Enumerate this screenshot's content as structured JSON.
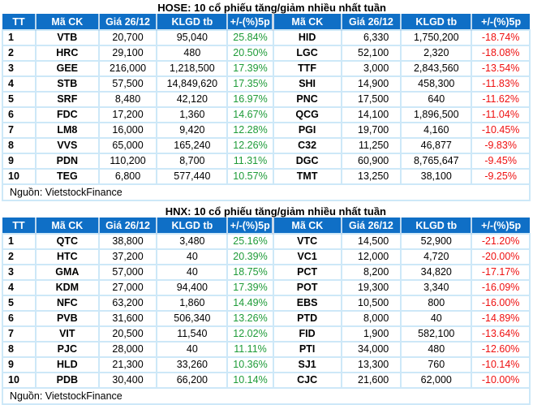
{
  "colors": {
    "header_bg": "#0f6fc6",
    "up": "#1e9b38",
    "down": "#ee1111",
    "grid": "#cde8f8"
  },
  "tables": [
    {
      "title": "HOSE: 10 cổ phiếu tăng/giảm nhiều nhất tuần",
      "headers": [
        "TT",
        "Mã CK",
        "Giá 26/12",
        "KLGD tb",
        "+/-(%)5p",
        "Mã CK",
        "Giá 26/12",
        "KLGD tb",
        "+/-(%)5p"
      ],
      "rows": [
        {
          "tt": "1",
          "gain_sym": "VTB",
          "gain_price": "20,700",
          "gain_vol": "95,040",
          "gain_pct": "25.84%",
          "loss_sym": "HID",
          "loss_price": "6,330",
          "loss_vol": "1,750,200",
          "loss_pct": "-18.74%"
        },
        {
          "tt": "2",
          "gain_sym": "HRC",
          "gain_price": "29,100",
          "gain_vol": "480",
          "gain_pct": "20.50%",
          "loss_sym": "LGC",
          "loss_price": "52,100",
          "loss_vol": "2,320",
          "loss_pct": "-18.08%"
        },
        {
          "tt": "3",
          "gain_sym": "GEE",
          "gain_price": "216,000",
          "gain_vol": "1,218,500",
          "gain_pct": "17.39%",
          "loss_sym": "TTF",
          "loss_price": "3,000",
          "loss_vol": "2,843,560",
          "loss_pct": "-13.54%"
        },
        {
          "tt": "4",
          "gain_sym": "STB",
          "gain_price": "57,500",
          "gain_vol": "14,849,620",
          "gain_pct": "17.35%",
          "loss_sym": "SHI",
          "loss_price": "14,900",
          "loss_vol": "458,300",
          "loss_pct": "-11.83%"
        },
        {
          "tt": "5",
          "gain_sym": "SRF",
          "gain_price": "8,480",
          "gain_vol": "42,120",
          "gain_pct": "16.97%",
          "loss_sym": "PNC",
          "loss_price": "17,500",
          "loss_vol": "640",
          "loss_pct": "-11.62%"
        },
        {
          "tt": "6",
          "gain_sym": "FDC",
          "gain_price": "17,200",
          "gain_vol": "1,360",
          "gain_pct": "14.67%",
          "loss_sym": "QCG",
          "loss_price": "14,100",
          "loss_vol": "1,896,500",
          "loss_pct": "-11.04%"
        },
        {
          "tt": "7",
          "gain_sym": "LM8",
          "gain_price": "16,000",
          "gain_vol": "9,420",
          "gain_pct": "12.28%",
          "loss_sym": "PGI",
          "loss_price": "19,700",
          "loss_vol": "4,160",
          "loss_pct": "-10.45%"
        },
        {
          "tt": "8",
          "gain_sym": "VVS",
          "gain_price": "65,000",
          "gain_vol": "165,240",
          "gain_pct": "12.26%",
          "loss_sym": "C32",
          "loss_price": "11,250",
          "loss_vol": "46,877",
          "loss_pct": "-9.83%"
        },
        {
          "tt": "9",
          "gain_sym": "PDN",
          "gain_price": "110,200",
          "gain_vol": "8,700",
          "gain_pct": "11.31%",
          "loss_sym": "DGC",
          "loss_price": "60,900",
          "loss_vol": "8,765,647",
          "loss_pct": "-9.45%"
        },
        {
          "tt": "10",
          "gain_sym": "TEG",
          "gain_price": "6,800",
          "gain_vol": "577,440",
          "gain_pct": "10.57%",
          "loss_sym": "TMT",
          "loss_price": "13,250",
          "loss_vol": "38,100",
          "loss_pct": "-9.25%"
        }
      ],
      "source": "Nguồn: VietstockFinance"
    },
    {
      "title": "HNX: 10 cổ phiếu tăng/giảm nhiều nhất tuần",
      "headers": [
        "TT",
        "Mã CK",
        "Giá 26/12",
        "KLGD tb",
        "+/-(%)5p",
        "Mã CK",
        "Giá 26/12",
        "KLGD tb",
        "+/-(%)5p"
      ],
      "rows": [
        {
          "tt": "1",
          "gain_sym": "QTC",
          "gain_price": "38,800",
          "gain_vol": "3,480",
          "gain_pct": "25.16%",
          "loss_sym": "VTC",
          "loss_price": "14,500",
          "loss_vol": "52,900",
          "loss_pct": "-21.20%"
        },
        {
          "tt": "2",
          "gain_sym": "HTC",
          "gain_price": "37,200",
          "gain_vol": "40",
          "gain_pct": "20.39%",
          "loss_sym": "VC1",
          "loss_price": "12,000",
          "loss_vol": "4,720",
          "loss_pct": "-20.00%"
        },
        {
          "tt": "3",
          "gain_sym": "GMA",
          "gain_price": "57,000",
          "gain_vol": "40",
          "gain_pct": "18.75%",
          "loss_sym": "PCT",
          "loss_price": "8,200",
          "loss_vol": "34,820",
          "loss_pct": "-17.17%"
        },
        {
          "tt": "4",
          "gain_sym": "KDM",
          "gain_price": "27,000",
          "gain_vol": "94,400",
          "gain_pct": "17.39%",
          "loss_sym": "POT",
          "loss_price": "19,300",
          "loss_vol": "3,340",
          "loss_pct": "-16.09%"
        },
        {
          "tt": "5",
          "gain_sym": "NFC",
          "gain_price": "63,200",
          "gain_vol": "1,860",
          "gain_pct": "14.49%",
          "loss_sym": "EBS",
          "loss_price": "10,500",
          "loss_vol": "800",
          "loss_pct": "-16.00%"
        },
        {
          "tt": "6",
          "gain_sym": "PVB",
          "gain_price": "31,600",
          "gain_vol": "506,340",
          "gain_pct": "13.26%",
          "loss_sym": "PTD",
          "loss_price": "8,000",
          "loss_vol": "40",
          "loss_pct": "-14.89%"
        },
        {
          "tt": "7",
          "gain_sym": "VIT",
          "gain_price": "20,500",
          "gain_vol": "11,540",
          "gain_pct": "12.02%",
          "loss_sym": "FID",
          "loss_price": "1,900",
          "loss_vol": "582,100",
          "loss_pct": "-13.64%"
        },
        {
          "tt": "8",
          "gain_sym": "PJC",
          "gain_price": "28,000",
          "gain_vol": "40",
          "gain_pct": "11.11%",
          "loss_sym": "PTI",
          "loss_price": "34,000",
          "loss_vol": "480",
          "loss_pct": "-12.60%"
        },
        {
          "tt": "9",
          "gain_sym": "HLD",
          "gain_price": "21,300",
          "gain_vol": "33,260",
          "gain_pct": "10.36%",
          "loss_sym": "SJ1",
          "loss_price": "13,300",
          "loss_vol": "760",
          "loss_pct": "-10.14%"
        },
        {
          "tt": "10",
          "gain_sym": "PDB",
          "gain_price": "30,400",
          "gain_vol": "66,200",
          "gain_pct": "10.14%",
          "loss_sym": "CJC",
          "loss_price": "21,600",
          "loss_vol": "62,000",
          "loss_pct": "-10.00%"
        }
      ],
      "source": "Nguồn: VietstockFinance"
    }
  ]
}
